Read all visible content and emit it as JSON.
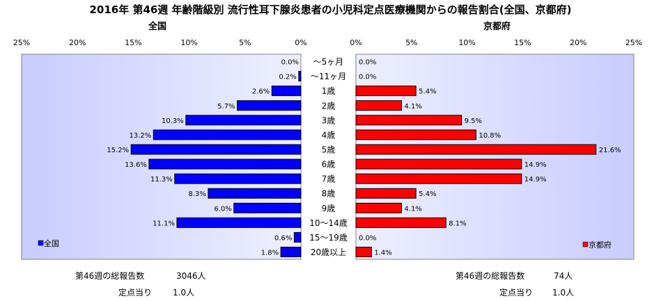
{
  "title": "2016年 第46週 年齢階級別 流行性耳下腺炎患者の小児科定点医療機関からの報告割合(全国、京都府)",
  "chart_data": [
    {
      "type": "bar",
      "orientation": "horizontal",
      "direction": "right-to-left",
      "title": "全国",
      "categories": [
        "～5ヶ月",
        "～11ヶ月",
        "1歳",
        "2歳",
        "3歳",
        "4歳",
        "5歳",
        "6歳",
        "7歳",
        "8歳",
        "9歳",
        "10～14歳",
        "15～19歳",
        "20歳以上"
      ],
      "series": [
        {
          "name": "全国",
          "color": "#0000ff",
          "values": [
            0.0,
            0.2,
            2.6,
            5.7,
            10.3,
            13.2,
            15.2,
            13.6,
            11.3,
            8.3,
            6.0,
            11.1,
            0.6,
            1.8
          ],
          "labels": [
            "0.0%",
            "0.2%",
            "2.6%",
            "5.7%",
            "10.3%",
            "13.2%",
            "15.2%",
            "13.6%",
            "11.3%",
            "8.3%",
            "6.0%",
            "11.1%",
            "0.6%",
            "1.8%"
          ]
        }
      ],
      "xlim": [
        0,
        25
      ],
      "xticks": [
        "25%",
        "20%",
        "15%",
        "10%",
        "5%",
        "0%"
      ],
      "legend": "bottom-left",
      "grid": false
    },
    {
      "type": "bar",
      "orientation": "horizontal",
      "direction": "left-to-right",
      "title": "京都府",
      "categories": [
        "～5ヶ月",
        "～11ヶ月",
        "1歳",
        "2歳",
        "3歳",
        "4歳",
        "5歳",
        "6歳",
        "7歳",
        "8歳",
        "9歳",
        "10～14歳",
        "15～19歳",
        "20歳以上"
      ],
      "series": [
        {
          "name": "京都府",
          "color": "#ff0000",
          "values": [
            0.0,
            0.0,
            5.4,
            4.1,
            9.5,
            10.8,
            21.6,
            14.9,
            14.9,
            5.4,
            4.1,
            8.1,
            0.0,
            1.4
          ],
          "labels": [
            "0.0%",
            "0.0%",
            "5.4%",
            "4.1%",
            "9.5%",
            "10.8%",
            "21.6%",
            "14.9%",
            "14.9%",
            "5.4%",
            "4.1%",
            "8.1%",
            "0.0%",
            "1.4%"
          ]
        }
      ],
      "xlim": [
        0,
        25
      ],
      "xticks": [
        "0%",
        "5%",
        "10%",
        "15%",
        "20%",
        "25%"
      ],
      "legend": "bottom-right",
      "grid": false
    }
  ],
  "footer": {
    "left": {
      "total_label": "第46週の総報告数",
      "total_value": "3046人",
      "per_label": "定点当り",
      "per_value": "1.0人"
    },
    "right": {
      "total_label": "第46週の総報告数",
      "total_value": "74人",
      "per_label": "定点当り",
      "per_value": "1.0人"
    }
  }
}
